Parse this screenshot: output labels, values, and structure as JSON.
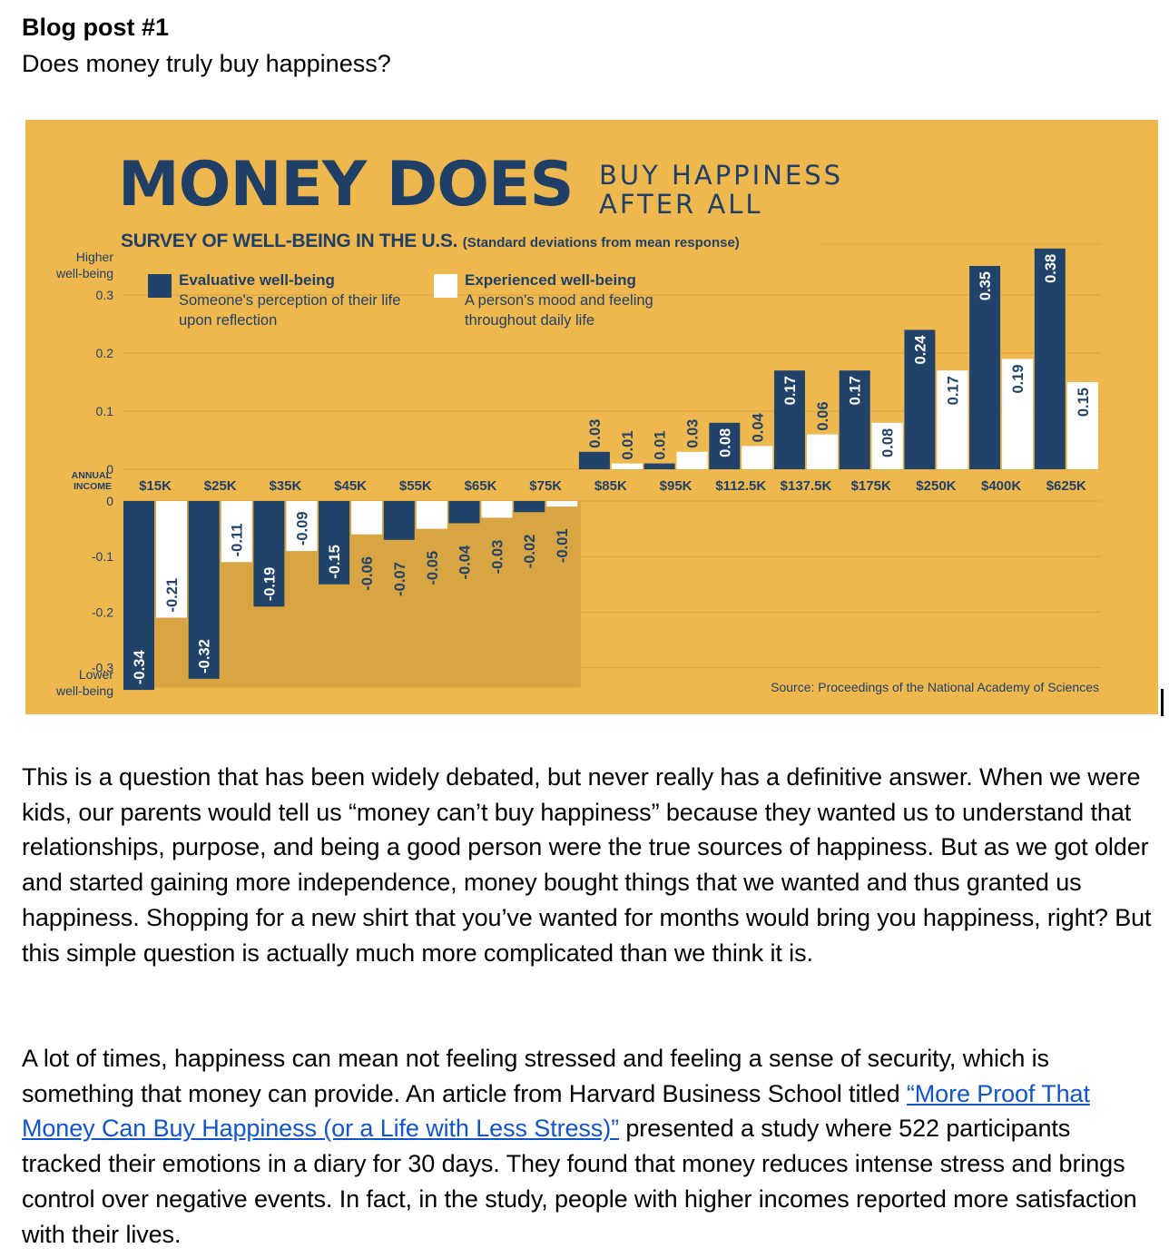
{
  "post": {
    "title": "Blog post #1",
    "subtitle": "Does money truly buy happiness?"
  },
  "infographic": {
    "headline_main": "MONEY DOES",
    "headline_side_1": "BUY HAPPINESS",
    "headline_side_2": "AFTER ALL",
    "subtitle": "SURVEY OF WELL-BEING IN THE U.S.",
    "subtitle_note": "(Standard deviations from mean response)",
    "source": "Source: Proceedings of the National Academy of Sciences",
    "colors": {
      "background": "#eeb84f",
      "evaluative": "#21436a",
      "experienced": "#ffffff",
      "shade": "#d9a442",
      "text": "#1f3f66"
    }
  },
  "chart_data": {
    "type": "bar",
    "title": "SURVEY OF WELL-BEING IN THE U.S. (Standard deviations from mean response)",
    "xlabel": "ANNUAL INCOME",
    "y_upper_label": "Higher well-being",
    "y_lower_label": "Lower well-being",
    "categories": [
      "$15K",
      "$25K",
      "$35K",
      "$45K",
      "$55K",
      "$65K",
      "$75K",
      "$85K",
      "$95K",
      "$112.5K",
      "$137.5K",
      "$175K",
      "$250K",
      "$400K",
      "$625K"
    ],
    "series": [
      {
        "name": "Evaluative well-being",
        "description": "Someone's perception of their life upon reflection",
        "values": [
          -0.34,
          -0.32,
          -0.19,
          -0.15,
          -0.07,
          -0.04,
          -0.02,
          0.03,
          0.01,
          0.08,
          0.17,
          0.17,
          0.24,
          0.35,
          0.38
        ]
      },
      {
        "name": "Experienced well-being",
        "description": "A person's mood and feeling throughout daily life",
        "values": [
          -0.21,
          -0.11,
          -0.09,
          -0.06,
          -0.05,
          -0.03,
          -0.01,
          0.01,
          0.03,
          0.04,
          0.06,
          0.08,
          0.17,
          0.19,
          0.15
        ]
      }
    ],
    "value_labels_evaluative": [
      "-0.34",
      "-0.32",
      "-0.19",
      "-0.15",
      "-0.07",
      "-0.04",
      "-0.02",
      "0.03",
      "0.01",
      "0.08",
      "0.17",
      "0.17",
      "0.24",
      "0.35",
      "0.38"
    ],
    "value_labels_experienced": [
      "-0.21",
      "-0.11",
      "-0.09",
      "-0.06",
      "-0.05",
      "-0.03",
      "-0.01",
      "0.01",
      "0.03",
      "0.04",
      "0.06",
      "0.08",
      "0.17",
      "0.19",
      "0.15"
    ],
    "y_ticks_upper": [
      0.3,
      0.2,
      0.1,
      0
    ],
    "y_ticks_lower": [
      0,
      -0.1,
      -0.2,
      -0.3
    ],
    "y_tick_labels_upper": [
      "0.3",
      "0.2",
      "0.1",
      "0"
    ],
    "y_tick_labels_lower": [
      "0",
      "-0.1",
      "-0.2",
      "-0.3"
    ],
    "ylim": [
      -0.34,
      0.38
    ],
    "grid": true,
    "legend_position": "top-left"
  },
  "paragraphs": {
    "p1": "This is a question that has been widely debated, but never really has a definitive answer. When we were kids, our parents would tell us “money can’t buy happiness” because they wanted us to understand that relationships, purpose, and being a good person were the true sources of happiness. But as we got older and started gaining more independence, money bought things that we wanted and thus granted us happiness. Shopping for a new shirt that you’ve wanted for months would bring you happiness, right? But this simple question is actually much more complicated than we think it is.",
    "p2_before": "A lot of times, happiness can mean not feeling stressed and feeling a sense of security, which is something that money can provide. An article from Harvard Business School titled ",
    "p2_link": "“More Proof That Money Can Buy Happiness (or a Life with Less Stress)”",
    "p2_after": " presented a study where 522 participants tracked their emotions in a diary for 30 days. They found that money reduces intense stress and brings control over negative events. In fact, in the study, people with higher incomes reported more satisfaction with their lives."
  }
}
